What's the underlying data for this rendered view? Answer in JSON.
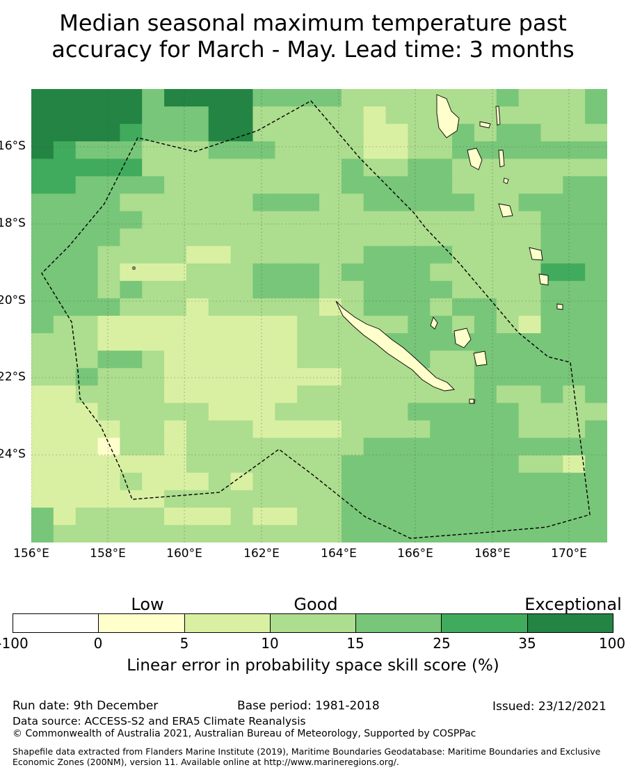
{
  "title": {
    "line1": "Median seasonal maximum temperature past",
    "line2": "accuracy for March - May. Lead time: 3 months"
  },
  "map": {
    "lon_labels": [
      "156°E",
      "158°E",
      "160°E",
      "162°E",
      "164°E",
      "166°E",
      "168°E",
      "170°E"
    ],
    "lat_labels": [
      "16°S",
      "18°S",
      "20°S",
      "22°S",
      "24°S"
    ]
  },
  "chart_data": {
    "type": "heatmap",
    "title": "Median seasonal maximum temperature past accuracy for March - May. Lead time: 3 months",
    "x_range_deg_e": [
      156,
      171
    ],
    "y_range_deg_s": [
      14.7,
      26.5
    ],
    "colorbar": {
      "label": "Linear error in probability space skill score (%)",
      "boundaries": [
        "-100",
        "0",
        "5",
        "10",
        "15",
        "25",
        "35",
        "100"
      ],
      "categories": [
        {
          "name": "Low"
        },
        {
          "name": "Good"
        },
        {
          "name": "Exceptional"
        }
      ],
      "colors": [
        "#ffffff",
        "#ffffcc",
        "#d9f0a3",
        "#addd8e",
        "#78c679",
        "#41ab5d",
        "#238443"
      ]
    },
    "legend": "bottom"
  },
  "footer": {
    "run_date": "Run date: 9th December",
    "base_period": "Base period: 1981-2018",
    "issued": "Issued: 23/12/2021",
    "data_source": "Data source: ACCESS-S2 and ERA5 Climate Reanalysis",
    "copyright": "© Commonwealth of Australia 2021, Australian Bureau of Meteorology, Supported by COSPPac",
    "shapefile": "Shapefile data extracted from Flanders Marine Institute (2019), Maritime Boundaries Geodatabase: Maritime Boundaries and Exclusive Economic Zones (200NM), version 11. Available online at http://www.marineregions.org/."
  }
}
